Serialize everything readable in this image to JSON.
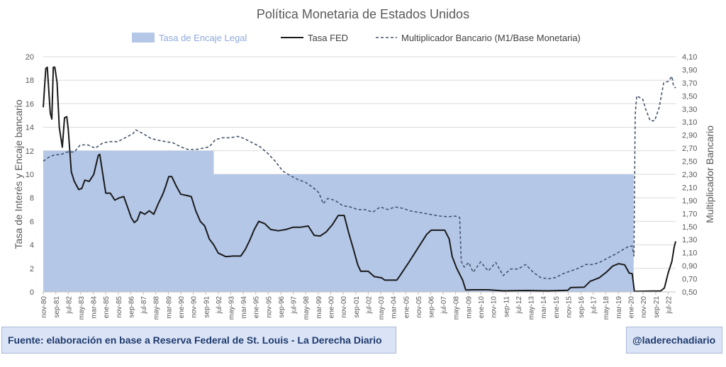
{
  "chart_data": {
    "type": "line",
    "title": "Política Monetaria de Estados Unidos",
    "ylabel_left": "Tasa de Interés y Encaje bancario",
    "ylabel_right": "Multiplicador Bancario",
    "ylim_left": [
      0,
      20
    ],
    "ylim_right": [
      0.5,
      4.1
    ],
    "y_ticks_left": [
      "0",
      "2",
      "4",
      "6",
      "8",
      "10",
      "12",
      "14",
      "16",
      "18",
      "20"
    ],
    "y_ticks_right": [
      "0,50",
      "0,70",
      "0,90",
      "1,10",
      "1,30",
      "1,50",
      "1,70",
      "1,90",
      "2,10",
      "2,30",
      "2,50",
      "2,70",
      "2,90",
      "3,10",
      "3,30",
      "3,50",
      "3,70",
      "3,90",
      "4,10"
    ],
    "x_ticks": [
      {
        "label": "nov-80",
        "x": 1980.83
      },
      {
        "label": "sep-81",
        "x": 1981.67
      },
      {
        "label": "jul-82",
        "x": 1982.5
      },
      {
        "label": "may-83",
        "x": 1983.33
      },
      {
        "label": "mar-84",
        "x": 1984.17
      },
      {
        "label": "ene-85",
        "x": 1985.0
      },
      {
        "label": "nov-85",
        "x": 1985.83
      },
      {
        "label": "sep-86",
        "x": 1986.67
      },
      {
        "label": "jul-87",
        "x": 1987.5
      },
      {
        "label": "may-88",
        "x": 1988.33
      },
      {
        "label": "mar-89",
        "x": 1989.17
      },
      {
        "label": "ene-90",
        "x": 1990.0
      },
      {
        "label": "nov-90",
        "x": 1990.83
      },
      {
        "label": "sep-91",
        "x": 1991.67
      },
      {
        "label": "jul-92",
        "x": 1992.5
      },
      {
        "label": "may-93",
        "x": 1993.33
      },
      {
        "label": "mar-94",
        "x": 1994.17
      },
      {
        "label": "ene-95",
        "x": 1995.0
      },
      {
        "label": "nov-95",
        "x": 1995.83
      },
      {
        "label": "sep-96",
        "x": 1996.67
      },
      {
        "label": "jul-97",
        "x": 1997.5
      },
      {
        "label": "may-98",
        "x": 1998.33
      },
      {
        "label": "mar-99",
        "x": 1999.17
      },
      {
        "label": "ene-00",
        "x": 2000.0
      },
      {
        "label": "nov-00",
        "x": 2000.83
      },
      {
        "label": "sep-01",
        "x": 2001.67
      },
      {
        "label": "jul-02",
        "x": 2002.5
      },
      {
        "label": "may-03",
        "x": 2003.33
      },
      {
        "label": "mar-04",
        "x": 2004.17
      },
      {
        "label": "ene-05",
        "x": 2005.0
      },
      {
        "label": "nov-05",
        "x": 2005.83
      },
      {
        "label": "sep-06",
        "x": 2006.67
      },
      {
        "label": "jul-07",
        "x": 2007.5
      },
      {
        "label": "may-08",
        "x": 2008.33
      },
      {
        "label": "mar-09",
        "x": 2009.17
      },
      {
        "label": "ene-10",
        "x": 2010.0
      },
      {
        "label": "nov-10",
        "x": 2010.83
      },
      {
        "label": "sep-11",
        "x": 2011.67
      },
      {
        "label": "jul-12",
        "x": 2012.5
      },
      {
        "label": "may-13",
        "x": 2013.33
      },
      {
        "label": "mar-14",
        "x": 2014.17
      },
      {
        "label": "ene-15",
        "x": 2015.0
      },
      {
        "label": "nov-15",
        "x": 2015.83
      },
      {
        "label": "sep-16",
        "x": 2016.67
      },
      {
        "label": "jul-17",
        "x": 2017.5
      },
      {
        "label": "may-18",
        "x": 2018.33
      },
      {
        "label": "mar-19",
        "x": 2019.17
      },
      {
        "label": "ene-20",
        "x": 2020.0
      },
      {
        "label": "nov-20",
        "x": 2020.83
      },
      {
        "label": "sep-21",
        "x": 2021.67
      },
      {
        "label": "jul-22",
        "x": 2022.5
      }
    ],
    "xlim": [
      1980.83,
      2023.0
    ],
    "legend_position": "top",
    "grid": "horizontal",
    "series": [
      {
        "name": "Tasa de Encaje Legal",
        "type": "area",
        "axis": "left",
        "color": "#b4c7e7",
        "points": [
          [
            1980.83,
            12
          ],
          [
            1992.2,
            12
          ],
          [
            1992.2,
            10
          ],
          [
            2020.2,
            10
          ],
          [
            2020.2,
            0
          ],
          [
            2023.0,
            0
          ]
        ]
      },
      {
        "name": "Tasa FED",
        "type": "line",
        "axis": "left",
        "color": "#1a1a1a",
        "points": [
          [
            1980.83,
            15.7
          ],
          [
            1981.0,
            19.0
          ],
          [
            1981.1,
            19.1
          ],
          [
            1981.3,
            15.2
          ],
          [
            1981.4,
            14.7
          ],
          [
            1981.5,
            19.1
          ],
          [
            1981.6,
            19.1
          ],
          [
            1981.75,
            17.8
          ],
          [
            1981.9,
            14.0
          ],
          [
            1982.1,
            12.3
          ],
          [
            1982.25,
            14.8
          ],
          [
            1982.4,
            14.9
          ],
          [
            1982.5,
            13.8
          ],
          [
            1982.7,
            10.2
          ],
          [
            1982.9,
            9.4
          ],
          [
            1983.2,
            8.7
          ],
          [
            1983.4,
            8.8
          ],
          [
            1983.6,
            9.5
          ],
          [
            1983.9,
            9.4
          ],
          [
            1984.2,
            10.0
          ],
          [
            1984.5,
            11.6
          ],
          [
            1984.6,
            11.7
          ],
          [
            1984.8,
            10.0
          ],
          [
            1985.0,
            8.4
          ],
          [
            1985.3,
            8.4
          ],
          [
            1985.6,
            7.8
          ],
          [
            1985.9,
            8.0
          ],
          [
            1986.2,
            8.1
          ],
          [
            1986.4,
            7.4
          ],
          [
            1986.7,
            6.3
          ],
          [
            1986.9,
            5.9
          ],
          [
            1987.1,
            6.1
          ],
          [
            1987.3,
            6.8
          ],
          [
            1987.6,
            6.6
          ],
          [
            1987.9,
            6.9
          ],
          [
            1988.2,
            6.6
          ],
          [
            1988.5,
            7.5
          ],
          [
            1988.8,
            8.3
          ],
          [
            1989.0,
            9.0
          ],
          [
            1989.2,
            9.8
          ],
          [
            1989.4,
            9.8
          ],
          [
            1989.7,
            9.0
          ],
          [
            1990.0,
            8.3
          ],
          [
            1990.4,
            8.2
          ],
          [
            1990.7,
            8.1
          ],
          [
            1991.0,
            6.9
          ],
          [
            1991.3,
            6.0
          ],
          [
            1991.6,
            5.6
          ],
          [
            1991.9,
            4.5
          ],
          [
            1992.2,
            4.0
          ],
          [
            1992.5,
            3.3
          ],
          [
            1993.0,
            3.0
          ],
          [
            1993.5,
            3.05
          ],
          [
            1994.0,
            3.05
          ],
          [
            1994.3,
            3.6
          ],
          [
            1994.6,
            4.4
          ],
          [
            1994.9,
            5.3
          ],
          [
            1995.2,
            6.0
          ],
          [
            1995.6,
            5.8
          ],
          [
            1996.0,
            5.3
          ],
          [
            1996.5,
            5.2
          ],
          [
            1997.0,
            5.3
          ],
          [
            1997.5,
            5.5
          ],
          [
            1998.0,
            5.5
          ],
          [
            1998.5,
            5.6
          ],
          [
            1998.9,
            4.8
          ],
          [
            1999.3,
            4.75
          ],
          [
            1999.7,
            5.1
          ],
          [
            2000.1,
            5.7
          ],
          [
            2000.5,
            6.5
          ],
          [
            2000.9,
            6.5
          ],
          [
            2001.2,
            5.0
          ],
          [
            2001.5,
            3.7
          ],
          [
            2001.8,
            2.3
          ],
          [
            2002.0,
            1.75
          ],
          [
            2002.5,
            1.75
          ],
          [
            2002.9,
            1.3
          ],
          [
            2003.4,
            1.2
          ],
          [
            2003.6,
            1.0
          ],
          [
            2004.4,
            1.0
          ],
          [
            2004.6,
            1.35
          ],
          [
            2005.2,
            2.5
          ],
          [
            2005.9,
            3.9
          ],
          [
            2006.4,
            4.9
          ],
          [
            2006.7,
            5.25
          ],
          [
            2007.6,
            5.25
          ],
          [
            2007.9,
            4.5
          ],
          [
            2008.1,
            3.0
          ],
          [
            2008.4,
            2.0
          ],
          [
            2008.8,
            1.0
          ],
          [
            2009.0,
            0.16
          ],
          [
            2009.5,
            0.18
          ],
          [
            2010.5,
            0.18
          ],
          [
            2011.5,
            0.09
          ],
          [
            2013.0,
            0.12
          ],
          [
            2014.5,
            0.09
          ],
          [
            2015.8,
            0.13
          ],
          [
            2016.0,
            0.37
          ],
          [
            2016.9,
            0.4
          ],
          [
            2017.3,
            0.9
          ],
          [
            2017.9,
            1.2
          ],
          [
            2018.4,
            1.7
          ],
          [
            2018.8,
            2.2
          ],
          [
            2019.2,
            2.4
          ],
          [
            2019.6,
            2.3
          ],
          [
            2019.9,
            1.6
          ],
          [
            2020.1,
            1.55
          ],
          [
            2020.25,
            0.05
          ],
          [
            2021.5,
            0.08
          ],
          [
            2022.0,
            0.08
          ],
          [
            2022.25,
            0.33
          ],
          [
            2022.5,
            1.6
          ],
          [
            2022.75,
            2.6
          ],
          [
            2022.9,
            3.8
          ],
          [
            2023.0,
            4.3
          ]
        ]
      },
      {
        "name": "Multiplicador Bancario (M1/Base Monetaria)",
        "type": "line",
        "axis": "right",
        "color": "#44546a",
        "dashed": true,
        "points": [
          [
            1980.83,
            2.5
          ],
          [
            1981.2,
            2.56
          ],
          [
            1981.6,
            2.6
          ],
          [
            1982.0,
            2.6
          ],
          [
            1982.4,
            2.64
          ],
          [
            1982.9,
            2.64
          ],
          [
            1983.3,
            2.75
          ],
          [
            1983.8,
            2.75
          ],
          [
            1984.3,
            2.7
          ],
          [
            1984.8,
            2.78
          ],
          [
            1985.3,
            2.8
          ],
          [
            1985.8,
            2.8
          ],
          [
            1986.3,
            2.86
          ],
          [
            1986.8,
            2.92
          ],
          [
            1987.0,
            2.98
          ],
          [
            1987.5,
            2.92
          ],
          [
            1988.0,
            2.85
          ],
          [
            1988.5,
            2.82
          ],
          [
            1989.0,
            2.8
          ],
          [
            1989.5,
            2.78
          ],
          [
            1990.0,
            2.72
          ],
          [
            1990.5,
            2.68
          ],
          [
            1991.0,
            2.68
          ],
          [
            1991.5,
            2.7
          ],
          [
            1991.9,
            2.72
          ],
          [
            1992.3,
            2.83
          ],
          [
            1992.8,
            2.86
          ],
          [
            1993.3,
            2.86
          ],
          [
            1993.8,
            2.88
          ],
          [
            1994.2,
            2.85
          ],
          [
            1994.8,
            2.78
          ],
          [
            1995.3,
            2.72
          ],
          [
            1995.8,
            2.62
          ],
          [
            1996.3,
            2.5
          ],
          [
            1996.8,
            2.35
          ],
          [
            1997.3,
            2.28
          ],
          [
            1997.8,
            2.22
          ],
          [
            1998.3,
            2.18
          ],
          [
            1998.8,
            2.1
          ],
          [
            1999.2,
            2.02
          ],
          [
            1999.5,
            1.85
          ],
          [
            1999.8,
            1.93
          ],
          [
            2000.3,
            1.9
          ],
          [
            2000.8,
            1.82
          ],
          [
            2001.3,
            1.8
          ],
          [
            2001.8,
            1.76
          ],
          [
            2002.3,
            1.76
          ],
          [
            2002.8,
            1.72
          ],
          [
            2003.3,
            1.8
          ],
          [
            2003.8,
            1.76
          ],
          [
            2004.3,
            1.8
          ],
          [
            2004.8,
            1.78
          ],
          [
            2005.3,
            1.74
          ],
          [
            2005.8,
            1.72
          ],
          [
            2006.3,
            1.7
          ],
          [
            2006.8,
            1.68
          ],
          [
            2007.3,
            1.66
          ],
          [
            2007.8,
            1.65
          ],
          [
            2008.3,
            1.66
          ],
          [
            2008.6,
            1.64
          ],
          [
            2008.7,
            0.97
          ],
          [
            2008.9,
            0.88
          ],
          [
            2009.2,
            0.95
          ],
          [
            2009.5,
            0.8
          ],
          [
            2010.0,
            0.96
          ],
          [
            2010.5,
            0.82
          ],
          [
            2011.0,
            0.95
          ],
          [
            2011.5,
            0.75
          ],
          [
            2012.0,
            0.85
          ],
          [
            2012.5,
            0.85
          ],
          [
            2013.0,
            0.92
          ],
          [
            2013.5,
            0.8
          ],
          [
            2014.0,
            0.72
          ],
          [
            2014.5,
            0.7
          ],
          [
            2015.0,
            0.72
          ],
          [
            2015.5,
            0.78
          ],
          [
            2016.0,
            0.82
          ],
          [
            2016.5,
            0.86
          ],
          [
            2017.0,
            0.92
          ],
          [
            2017.5,
            0.92
          ],
          [
            2018.0,
            0.96
          ],
          [
            2018.5,
            1.02
          ],
          [
            2019.0,
            1.08
          ],
          [
            2019.5,
            1.15
          ],
          [
            2019.9,
            1.2
          ],
          [
            2020.1,
            1.2
          ],
          [
            2020.22,
            1.05
          ],
          [
            2020.3,
            3.2
          ],
          [
            2020.4,
            3.5
          ],
          [
            2020.8,
            3.45
          ],
          [
            2021.0,
            3.3
          ],
          [
            2021.3,
            3.12
          ],
          [
            2021.6,
            3.12
          ],
          [
            2021.9,
            3.32
          ],
          [
            2022.2,
            3.7
          ],
          [
            2022.5,
            3.72
          ],
          [
            2022.75,
            3.8
          ],
          [
            2022.85,
            3.66
          ],
          [
            2023.0,
            3.62
          ]
        ]
      }
    ]
  },
  "footer": {
    "source": "Fuente: elaboración en base a Reserva Federal de St. Louis - La Derecha Diario",
    "handle": "@laderechadiario"
  }
}
